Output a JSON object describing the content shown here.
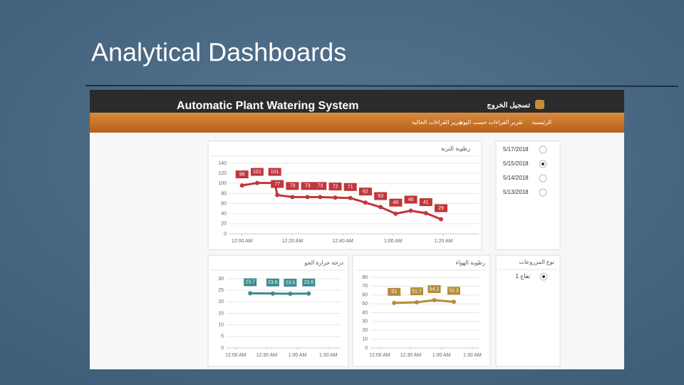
{
  "slide_title": "Analytical Dashboards",
  "app": {
    "title": "Automatic Plant Watering System",
    "logout": "تسجيل الخروج",
    "nav": [
      "الرئيسية",
      "تقرير القراءات حسب اليوم",
      "تقرير القراءات الحالية"
    ]
  },
  "dates": [
    "5/17/2018",
    "5/15/2018",
    "5/14/2018",
    "5/13/2018"
  ],
  "plant_type": {
    "label": "نوع المزروعات",
    "items": [
      "تفاح 1"
    ]
  },
  "chart_data": [
    {
      "type": "line",
      "title": "رطوبة التربة",
      "color": "#c0363c",
      "grid": true,
      "x": [
        0,
        6,
        13,
        14,
        20,
        26,
        31,
        37,
        43,
        49,
        55,
        61,
        67,
        73,
        79
      ],
      "values": [
        96,
        101,
        101,
        77,
        73,
        73,
        73,
        72,
        71,
        62,
        53,
        40,
        46,
        41,
        29
      ],
      "xlim": [
        -5,
        94
      ],
      "ylim": [
        0,
        140
      ],
      "xticks": [
        {
          "value": 0,
          "label": "12:00 AM"
        },
        {
          "value": 20,
          "label": "12:20 AM"
        },
        {
          "value": 40,
          "label": "12:40 AM"
        },
        {
          "value": 60,
          "label": "1:00 AM"
        },
        {
          "value": 80,
          "label": "1:20 AM"
        }
      ],
      "yticks": [
        0,
        20,
        40,
        60,
        80,
        100,
        120,
        140
      ]
    },
    {
      "type": "line",
      "title": "درجة حرارة الجو",
      "color": "#3d8a92",
      "grid": true,
      "x": [
        14,
        36,
        53,
        71
      ],
      "values": [
        23.7,
        23.6,
        23.5,
        23.6
      ],
      "xlim": [
        -9,
        102
      ],
      "ylim": [
        0,
        30
      ],
      "xticks": [
        {
          "value": 0,
          "label": "12:00 AM"
        },
        {
          "value": 30,
          "label": "12:30 AM"
        },
        {
          "value": 60,
          "label": "1:00 AM"
        },
        {
          "value": 90,
          "label": "1:30 AM"
        }
      ],
      "yticks": [
        0,
        5,
        10,
        15,
        20,
        25,
        30
      ]
    },
    {
      "type": "line",
      "title": "رطوبة الهواء",
      "color": "#b48c3c",
      "grid": true,
      "x": [
        14,
        36,
        53,
        72
      ],
      "values": [
        51,
        51.7,
        54.1,
        52.3
      ],
      "xlim": [
        -9,
        97
      ],
      "ylim": [
        0,
        80
      ],
      "xticks": [
        {
          "value": 0,
          "label": "12:00 AM"
        },
        {
          "value": 30,
          "label": "12:30 AM"
        },
        {
          "value": 60,
          "label": "1:00 AM"
        },
        {
          "value": 90,
          "label": "1:30 AM"
        }
      ],
      "yticks": [
        0,
        10,
        20,
        30,
        40,
        50,
        60,
        70,
        80
      ]
    }
  ]
}
